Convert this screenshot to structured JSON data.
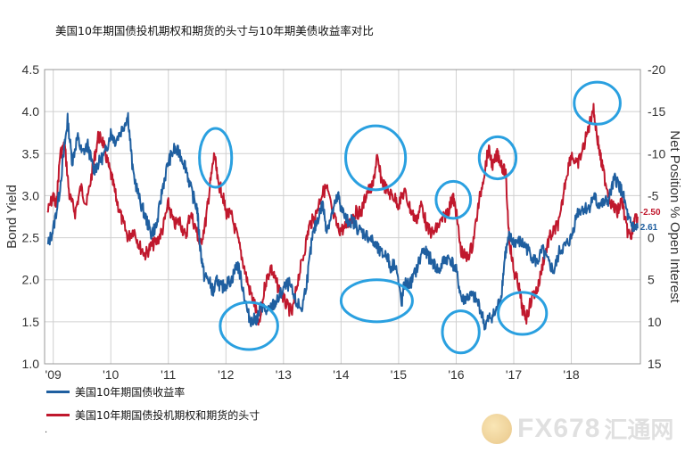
{
  "title": "美国10年期国债投机期权和期货的头寸与10年期美债收益率对比",
  "legend": {
    "yield_label": "美国10年期国债收益率",
    "position_label": "美国10年期国债投机期权和期货的头寸"
  },
  "watermark": {
    "logo_icon": "coin-logo-icon",
    "text": "FX678",
    "cn_text": "汇通网"
  },
  "footer_mark": ".",
  "colors": {
    "yield": "#1f5fa0",
    "position": "#c0182d",
    "circle": "#2aa0e0",
    "grid": "#d0d0d0"
  },
  "chart_data": {
    "type": "line",
    "title": "美国10年期国债投机期权和期货的头寸与10年期美债收益率对比",
    "xlabel": "",
    "ylabel": "Bond Yield",
    "y2label": "Net Position % Open Interest",
    "x_tick_labels": [
      "'09",
      "'10",
      "'11",
      "'12",
      "'13",
      "'14",
      "'15",
      "'16",
      "'17",
      "'18"
    ],
    "x_tick_years": [
      2009,
      2010,
      2011,
      2012,
      2013,
      2014,
      2015,
      2016,
      2017,
      2018
    ],
    "xlim": [
      2008.85,
      2019.2
    ],
    "ylim": [
      1.0,
      4.5
    ],
    "yticks": [
      "1.0",
      "1.5",
      "2.0",
      "2.5",
      "3.0",
      "3.5",
      "4.0",
      "4.5"
    ],
    "y2lim": [
      15,
      -20
    ],
    "y2ticks": [
      "-20",
      "-15",
      "-10",
      "-5",
      "0",
      "5",
      "10",
      "15"
    ],
    "grid": true,
    "end_labels": {
      "position": "-2.50",
      "yield": "2.61"
    },
    "series": [
      {
        "name": "美国10年期国债收益率",
        "axis": "left",
        "points": [
          [
            2008.9,
            2.4
          ],
          [
            2009.0,
            2.6
          ],
          [
            2009.1,
            3.0
          ],
          [
            2009.2,
            3.6
          ],
          [
            2009.25,
            3.9
          ],
          [
            2009.33,
            3.4
          ],
          [
            2009.42,
            3.7
          ],
          [
            2009.5,
            3.5
          ],
          [
            2009.6,
            3.6
          ],
          [
            2009.7,
            3.3
          ],
          [
            2009.8,
            3.4
          ],
          [
            2009.9,
            3.5
          ],
          [
            2010.0,
            3.75
          ],
          [
            2010.08,
            3.65
          ],
          [
            2010.2,
            3.8
          ],
          [
            2010.3,
            3.95
          ],
          [
            2010.38,
            3.3
          ],
          [
            2010.5,
            2.95
          ],
          [
            2010.6,
            2.75
          ],
          [
            2010.7,
            2.55
          ],
          [
            2010.8,
            2.65
          ],
          [
            2010.9,
            3.1
          ],
          [
            2011.0,
            3.4
          ],
          [
            2011.1,
            3.55
          ],
          [
            2011.2,
            3.5
          ],
          [
            2011.3,
            3.35
          ],
          [
            2011.4,
            3.05
          ],
          [
            2011.5,
            2.85
          ],
          [
            2011.55,
            2.4
          ],
          [
            2011.62,
            2.05
          ],
          [
            2011.7,
            2.0
          ],
          [
            2011.78,
            1.85
          ],
          [
            2011.85,
            2.0
          ],
          [
            2011.92,
            1.9
          ],
          [
            2012.0,
            1.95
          ],
          [
            2012.1,
            2.0
          ],
          [
            2012.2,
            2.2
          ],
          [
            2012.28,
            1.95
          ],
          [
            2012.38,
            1.6
          ],
          [
            2012.45,
            1.5
          ],
          [
            2012.55,
            1.55
          ],
          [
            2012.62,
            1.7
          ],
          [
            2012.72,
            1.6
          ],
          [
            2012.82,
            1.7
          ],
          [
            2012.9,
            1.75
          ],
          [
            2013.0,
            1.9
          ],
          [
            2013.1,
            1.95
          ],
          [
            2013.2,
            1.75
          ],
          [
            2013.32,
            1.65
          ],
          [
            2013.42,
            2.05
          ],
          [
            2013.5,
            2.5
          ],
          [
            2013.58,
            2.7
          ],
          [
            2013.68,
            2.9
          ],
          [
            2013.75,
            2.6
          ],
          [
            2013.85,
            2.8
          ],
          [
            2013.95,
            3.0
          ],
          [
            2014.0,
            2.85
          ],
          [
            2014.1,
            2.7
          ],
          [
            2014.2,
            2.7
          ],
          [
            2014.3,
            2.6
          ],
          [
            2014.4,
            2.55
          ],
          [
            2014.5,
            2.5
          ],
          [
            2014.6,
            2.4
          ],
          [
            2014.7,
            2.3
          ],
          [
            2014.8,
            2.3
          ],
          [
            2014.85,
            2.15
          ],
          [
            2014.95,
            2.2
          ],
          [
            2015.05,
            1.7
          ],
          [
            2015.1,
            1.95
          ],
          [
            2015.2,
            1.95
          ],
          [
            2015.3,
            2.1
          ],
          [
            2015.42,
            2.35
          ],
          [
            2015.5,
            2.3
          ],
          [
            2015.6,
            2.2
          ],
          [
            2015.7,
            2.1
          ],
          [
            2015.8,
            2.25
          ],
          [
            2015.9,
            2.25
          ],
          [
            2016.0,
            2.1
          ],
          [
            2016.1,
            1.75
          ],
          [
            2016.2,
            1.8
          ],
          [
            2016.3,
            1.8
          ],
          [
            2016.4,
            1.7
          ],
          [
            2016.5,
            1.45
          ],
          [
            2016.58,
            1.55
          ],
          [
            2016.68,
            1.6
          ],
          [
            2016.78,
            1.8
          ],
          [
            2016.85,
            2.3
          ],
          [
            2016.92,
            2.5
          ],
          [
            2017.0,
            2.45
          ],
          [
            2017.1,
            2.45
          ],
          [
            2017.2,
            2.4
          ],
          [
            2017.3,
            2.3
          ],
          [
            2017.4,
            2.2
          ],
          [
            2017.5,
            2.35
          ],
          [
            2017.6,
            2.2
          ],
          [
            2017.7,
            2.1
          ],
          [
            2017.8,
            2.35
          ],
          [
            2017.9,
            2.4
          ],
          [
            2018.0,
            2.5
          ],
          [
            2018.1,
            2.8
          ],
          [
            2018.2,
            2.85
          ],
          [
            2018.3,
            2.85
          ],
          [
            2018.4,
            3.0
          ],
          [
            2018.45,
            2.9
          ],
          [
            2018.55,
            2.9
          ],
          [
            2018.65,
            2.95
          ],
          [
            2018.75,
            3.2
          ],
          [
            2018.82,
            3.15
          ],
          [
            2018.9,
            3.0
          ],
          [
            2019.0,
            2.7
          ],
          [
            2019.05,
            2.65
          ],
          [
            2019.1,
            2.6
          ],
          [
            2019.15,
            2.61
          ]
        ]
      },
      {
        "name": "美国10年期国债投机期权和期货的头寸",
        "axis": "right",
        "points": [
          [
            2008.9,
            -3.0
          ],
          [
            2009.0,
            -5.0
          ],
          [
            2009.05,
            -3.5
          ],
          [
            2009.12,
            -10.0
          ],
          [
            2009.2,
            -11.0
          ],
          [
            2009.28,
            -5.0
          ],
          [
            2009.38,
            -3.0
          ],
          [
            2009.48,
            -6.0
          ],
          [
            2009.58,
            -4.0
          ],
          [
            2009.68,
            -8.0
          ],
          [
            2009.78,
            -12.0
          ],
          [
            2009.86,
            -11.5
          ],
          [
            2009.94,
            -9.0
          ],
          [
            2010.02,
            -7.0
          ],
          [
            2010.1,
            -4.5
          ],
          [
            2010.2,
            -2.0
          ],
          [
            2010.3,
            0.0
          ],
          [
            2010.4,
            -1.0
          ],
          [
            2010.5,
            1.0
          ],
          [
            2010.6,
            2.0
          ],
          [
            2010.7,
            1.0
          ],
          [
            2010.8,
            0.5
          ],
          [
            2010.9,
            -1.0
          ],
          [
            2011.0,
            -4.0
          ],
          [
            2011.1,
            -1.5
          ],
          [
            2011.2,
            -2.0
          ],
          [
            2011.3,
            0.0
          ],
          [
            2011.38,
            -3.0
          ],
          [
            2011.48,
            -1.0
          ],
          [
            2011.55,
            1.0
          ],
          [
            2011.65,
            -2.0
          ],
          [
            2011.72,
            -6.0
          ],
          [
            2011.8,
            -10.0
          ],
          [
            2011.86,
            -6.5
          ],
          [
            2011.93,
            -5.5
          ],
          [
            2012.0,
            -3.0
          ],
          [
            2012.1,
            -2.5
          ],
          [
            2012.2,
            0.0
          ],
          [
            2012.3,
            3.0
          ],
          [
            2012.4,
            6.0
          ],
          [
            2012.5,
            8.0
          ],
          [
            2012.58,
            10.5
          ],
          [
            2012.68,
            5.5
          ],
          [
            2012.78,
            3.5
          ],
          [
            2012.85,
            5.0
          ],
          [
            2012.95,
            6.5
          ],
          [
            2013.05,
            8.0
          ],
          [
            2013.15,
            9.0
          ],
          [
            2013.25,
            5.0
          ],
          [
            2013.35,
            2.0
          ],
          [
            2013.45,
            -1.5
          ],
          [
            2013.55,
            -2.5
          ],
          [
            2013.65,
            -5.0
          ],
          [
            2013.75,
            -6.0
          ],
          [
            2013.85,
            -3.0
          ],
          [
            2013.95,
            -1.0
          ],
          [
            2014.05,
            -1.0
          ],
          [
            2014.15,
            -2.0
          ],
          [
            2014.25,
            -3.0
          ],
          [
            2014.35,
            -3.0
          ],
          [
            2014.45,
            -5.5
          ],
          [
            2014.55,
            -6.0
          ],
          [
            2014.62,
            -9.5
          ],
          [
            2014.7,
            -7.0
          ],
          [
            2014.8,
            -5.5
          ],
          [
            2014.9,
            -5.0
          ],
          [
            2015.0,
            -4.0
          ],
          [
            2015.1,
            -5.5
          ],
          [
            2015.2,
            -3.5
          ],
          [
            2015.3,
            -2.0
          ],
          [
            2015.4,
            -4.0
          ],
          [
            2015.5,
            -1.0
          ],
          [
            2015.6,
            -0.5
          ],
          [
            2015.7,
            -1.5
          ],
          [
            2015.8,
            -2.5
          ],
          [
            2015.88,
            -3.5
          ],
          [
            2015.94,
            -5.0
          ],
          [
            2016.0,
            -3.0
          ],
          [
            2016.08,
            1.5
          ],
          [
            2016.18,
            2.5
          ],
          [
            2016.28,
            1.0
          ],
          [
            2016.38,
            -3.5
          ],
          [
            2016.48,
            -7.5
          ],
          [
            2016.56,
            -10.5
          ],
          [
            2016.64,
            -8.5
          ],
          [
            2016.72,
            -10.0
          ],
          [
            2016.8,
            -8.5
          ],
          [
            2016.86,
            -7.5
          ],
          [
            2016.92,
            0.0
          ],
          [
            2017.0,
            4.0
          ],
          [
            2017.08,
            5.5
          ],
          [
            2017.15,
            8.5
          ],
          [
            2017.22,
            9.5
          ],
          [
            2017.32,
            7.0
          ],
          [
            2017.42,
            6.0
          ],
          [
            2017.52,
            2.5
          ],
          [
            2017.62,
            0.0
          ],
          [
            2017.72,
            -1.0
          ],
          [
            2017.8,
            -2.0
          ],
          [
            2017.9,
            -7.0
          ],
          [
            2018.0,
            -10.0
          ],
          [
            2018.1,
            -8.5
          ],
          [
            2018.2,
            -10.5
          ],
          [
            2018.3,
            -13.0
          ],
          [
            2018.38,
            -15.5
          ],
          [
            2018.45,
            -12.0
          ],
          [
            2018.52,
            -9.0
          ],
          [
            2018.6,
            -6.5
          ],
          [
            2018.7,
            -4.0
          ],
          [
            2018.8,
            -3.0
          ],
          [
            2018.88,
            -4.5
          ],
          [
            2018.96,
            -1.0
          ],
          [
            2019.04,
            0.0
          ],
          [
            2019.1,
            -2.0
          ],
          [
            2019.15,
            -2.5
          ]
        ]
      }
    ],
    "annotations": [
      {
        "type": "circle",
        "x": 2011.82,
        "y2": -9.5,
        "rx_years": 0.28,
        "ry_units": 3.5
      },
      {
        "type": "circle",
        "x": 2012.4,
        "y_left": 1.45,
        "rx_years": 0.5,
        "ry_units_left": 0.28
      },
      {
        "type": "circle",
        "x": 2014.6,
        "y2": -9.5,
        "rx_years": 0.52,
        "ry_units": 3.8
      },
      {
        "type": "circle",
        "x": 2014.62,
        "y_left": 1.75,
        "rx_years": 0.62,
        "ry_units_left": 0.25
      },
      {
        "type": "circle",
        "x": 2015.95,
        "y2": -4.5,
        "rx_years": 0.3,
        "ry_units": 2.2
      },
      {
        "type": "circle",
        "x": 2016.08,
        "y_left": 1.38,
        "rx_years": 0.32,
        "ry_units_left": 0.25
      },
      {
        "type": "circle",
        "x": 2016.72,
        "y2": -9.5,
        "rx_years": 0.32,
        "ry_units": 2.5
      },
      {
        "type": "circle",
        "x": 2017.15,
        "y_left": 1.6,
        "rx_years": 0.42,
        "ry_units_left": 0.25
      },
      {
        "type": "circle",
        "x": 2018.45,
        "y2": -16.0,
        "rx_years": 0.4,
        "ry_units": 2.5
      }
    ]
  }
}
